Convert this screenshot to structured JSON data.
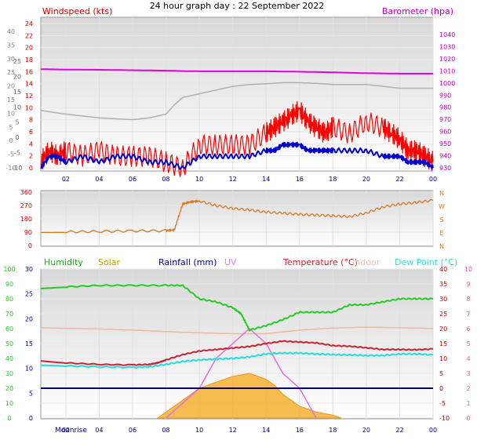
{
  "header": {
    "title": "24 hour graph day : 22 September 2022"
  },
  "colors": {
    "wind": "#e00000",
    "gust": "#ff0000",
    "wind_avg": "#0000cc",
    "wind_dir": "#d77a22",
    "barometer": "#e000e0",
    "barometer_axis": "#c000c0",
    "grey_line": "#b0b0b0",
    "humidity": "#22cc22",
    "solar": "#f5b030",
    "rainfall": "#00007a",
    "uv": "#e070e0",
    "temperature": "#cc2233",
    "indoor": "#f0b8a0",
    "dewpoint": "#22dddd",
    "dark_red": "#cc0000",
    "solar_legend": "#c8a000",
    "rain_legend": "#000080",
    "uv_legend": "#e080e0",
    "indoor_legend": "#e8c0b0",
    "dew_legend": "#33dddd",
    "humidity_legend": "#22aa22",
    "uv_axis": "#e060a0",
    "outer_axis": "#888888"
  },
  "labels": {
    "windspeed": "Windspeed (kts)",
    "barometer": "Barometer (hpa)",
    "humidity": "Humidity",
    "solar": "Solar",
    "rainfall": "Rainfall (mm)",
    "uv": "UV",
    "temperature": "Temperature (°C)",
    "indoor": "Indoor",
    "dewpoint": "Dew Point (°C)",
    "moonrise": "Moonrise"
  },
  "chart_data": [
    {
      "type": "line",
      "title": "Windspeed (kts)",
      "x_ticks": [
        "02",
        "04",
        "06",
        "08",
        "10",
        "12",
        "14",
        "16",
        "18",
        "20",
        "22",
        "00"
      ],
      "left_outer_ticks": [
        "40",
        "35",
        "30",
        "25",
        "20",
        "15",
        "10",
        "5",
        "0",
        "-5",
        "-10"
      ],
      "wind_ticks": [
        "24",
        "22",
        "20",
        "18",
        "16",
        "14",
        "12",
        "10",
        "8",
        "6",
        "4",
        "2",
        "0"
      ],
      "grey_ticks": [
        "25",
        "20",
        "15",
        "10",
        "5",
        "0",
        "-5",
        "-10"
      ],
      "barometer_ticks": [
        "1040",
        "1030",
        "1020",
        "1010",
        "1000",
        "990",
        "980",
        "970",
        "960",
        "950",
        "940",
        "930"
      ],
      "ylim_wind": [
        0,
        25
      ],
      "ylim_barometer": [
        977,
        1045
      ],
      "series": [
        {
          "name": "Barometer (hpa)",
          "x": [
            0.5,
            2,
            4,
            6,
            8,
            9,
            10,
            12,
            14,
            16,
            18,
            20,
            22,
            24
          ],
          "values": [
            1023.5,
            1023.3,
            1023.2,
            1023.0,
            1022.8,
            1022.6,
            1022.5,
            1022.5,
            1022.5,
            1022.3,
            1022.0,
            1021.6,
            1021.4,
            1021.4
          ]
        },
        {
          "name": "Windspeed (kts)",
          "x": [
            0.5,
            1,
            1.5,
            2,
            3,
            4,
            5,
            6,
            7,
            8,
            9,
            10,
            11,
            12,
            13,
            14,
            14.5,
            15,
            15.5,
            16,
            16.5,
            17,
            17.5,
            18,
            19,
            20,
            21,
            21.5,
            22,
            22.5,
            23,
            23.5,
            24
          ],
          "values": [
            0,
            2,
            2,
            1,
            2,
            1,
            2,
            2,
            1,
            1,
            0,
            2,
            2,
            2,
            2,
            3,
            3,
            4,
            4,
            4,
            3,
            3,
            3,
            3,
            3,
            3,
            2,
            2,
            2,
            1,
            1,
            1,
            0
          ]
        },
        {
          "name": "gust",
          "x": [
            0.5,
            1,
            1.5,
            2,
            3,
            4,
            5,
            6,
            7,
            8,
            9,
            10,
            11,
            12,
            13,
            14,
            14.5,
            15,
            15.5,
            16,
            16.5,
            17,
            17.5,
            18,
            19,
            20,
            21,
            21.5,
            22,
            22.5,
            23,
            23.5,
            24
          ],
          "values": [
            1,
            3,
            2,
            3,
            2,
            3,
            2,
            2,
            2,
            1,
            0,
            4,
            4,
            4,
            4,
            6,
            7,
            8,
            9,
            10,
            8,
            7,
            6,
            7,
            6,
            8,
            7,
            6,
            5,
            3,
            3,
            2,
            1
          ]
        },
        {
          "name": "grey",
          "x": [
            0.5,
            2,
            4,
            6,
            7,
            8,
            8.5,
            9,
            10,
            11,
            12,
            13,
            14,
            15,
            16,
            17,
            18,
            19,
            20,
            21,
            22,
            23,
            24
          ],
          "values": [
            5.5,
            4.5,
            3.5,
            3,
            3.5,
            4.5,
            7,
            9,
            10,
            11,
            12,
            12.5,
            12.7,
            13,
            13,
            12.8,
            12.5,
            12.5,
            12.5,
            12,
            11.5,
            11.5,
            11.5
          ]
        }
      ]
    },
    {
      "type": "line",
      "title": "Wind direction",
      "direction_ticks": [
        "360",
        "270",
        "180",
        "90",
        "0"
      ],
      "compass_ticks": [
        "N",
        "W",
        "S",
        "E",
        "N"
      ],
      "ylim": [
        0,
        360
      ],
      "series": [
        {
          "name": "direction",
          "x": [
            0.5,
            2,
            4,
            6,
            8,
            8.5,
            9,
            9.5,
            10,
            11,
            12,
            13,
            14,
            15,
            16,
            17,
            18,
            19,
            20,
            21,
            22,
            23,
            24
          ],
          "values": [
            90,
            92,
            95,
            98,
            100,
            105,
            280,
            295,
            300,
            270,
            250,
            240,
            225,
            218,
            210,
            205,
            200,
            195,
            220,
            260,
            280,
            290,
            305
          ]
        }
      ]
    },
    {
      "type": "area",
      "title": "",
      "left_outer_ticks": [
        "100",
        "90",
        "80",
        "70",
        "60",
        "50",
        "40",
        "30",
        "20",
        "10",
        "0"
      ],
      "temp_ticks": [
        "30",
        "25",
        "20",
        "15",
        "10",
        "5",
        "0"
      ],
      "right_ticks": [
        "40",
        "35",
        "30",
        "25",
        "20",
        "15",
        "10",
        "5",
        "0",
        "-5",
        "-10"
      ],
      "uv_ticks": [
        "10",
        "9",
        "8",
        "7",
        "6",
        "5",
        "4",
        "3",
        "2",
        "1",
        "0"
      ],
      "ylim_temp": [
        -10,
        40
      ],
      "series": [
        {
          "name": "Humidity",
          "x": [
            0.5,
            2,
            4,
            6,
            8,
            9,
            10,
            11,
            12,
            12.5,
            13,
            14,
            15,
            16,
            17,
            18,
            19,
            20,
            21,
            22,
            23,
            24
          ],
          "values": [
            87,
            88,
            89,
            89,
            89,
            89,
            80,
            78,
            74,
            70,
            59,
            62,
            66,
            71,
            71,
            71,
            76,
            76,
            78,
            80,
            80,
            80
          ]
        },
        {
          "name": "Indoor",
          "x": [
            0.5,
            2,
            4,
            6,
            8,
            10,
            12,
            14,
            16,
            18,
            20,
            22,
            24
          ],
          "values": [
            20.3,
            20.1,
            19.9,
            19.5,
            19.0,
            18.6,
            18.3,
            18.3,
            19.5,
            20.2,
            20.5,
            20.3,
            20.1
          ]
        },
        {
          "name": "Temperature (°C)",
          "x": [
            0.5,
            2,
            4,
            6,
            7,
            7.5,
            8,
            9,
            10,
            11,
            12,
            13,
            14,
            15,
            16,
            17,
            18,
            19,
            20,
            21,
            22,
            23,
            24
          ],
          "values": [
            9.2,
            8.5,
            8.0,
            7.8,
            8.0,
            8.5,
            9.5,
            11.3,
            12.5,
            13.0,
            13.5,
            14.0,
            15.0,
            15.8,
            15.5,
            15.2,
            14.3,
            14.1,
            13.6,
            13.0,
            13.0,
            12.9,
            13.2
          ]
        },
        {
          "name": "Dew Point (°C)",
          "x": [
            0.5,
            2,
            4,
            6,
            7,
            8,
            9,
            10,
            11,
            12,
            13,
            14,
            15,
            16,
            17,
            18,
            19,
            20,
            21,
            22,
            23,
            24
          ],
          "values": [
            7.8,
            7.5,
            7.2,
            7.0,
            7.2,
            8.0,
            9.0,
            9.5,
            9.8,
            10.0,
            10.5,
            11.5,
            11.8,
            11.8,
            11.5,
            11.3,
            11.2,
            11.0,
            11.0,
            11.5,
            11.5,
            11.2
          ]
        },
        {
          "name": "Solar",
          "x": [
            7.5,
            8,
            9,
            10,
            11,
            12,
            13,
            14,
            14.5,
            15,
            15.5,
            16,
            17,
            18,
            18.5
          ],
          "values": [
            -10,
            -8,
            -4,
            0,
            2,
            4,
            5,
            3,
            1,
            -2,
            -4,
            -6,
            -8,
            -9,
            -10
          ]
        },
        {
          "name": "UV",
          "x": [
            8,
            9,
            10,
            11,
            12,
            13,
            14,
            15,
            16,
            17
          ],
          "values": [
            0,
            1,
            2,
            4,
            5,
            6,
            5,
            3,
            2,
            0
          ]
        },
        {
          "name": "Rainfall (mm)",
          "x": [
            0.5,
            24
          ],
          "values": [
            0,
            0
          ]
        }
      ]
    }
  ]
}
